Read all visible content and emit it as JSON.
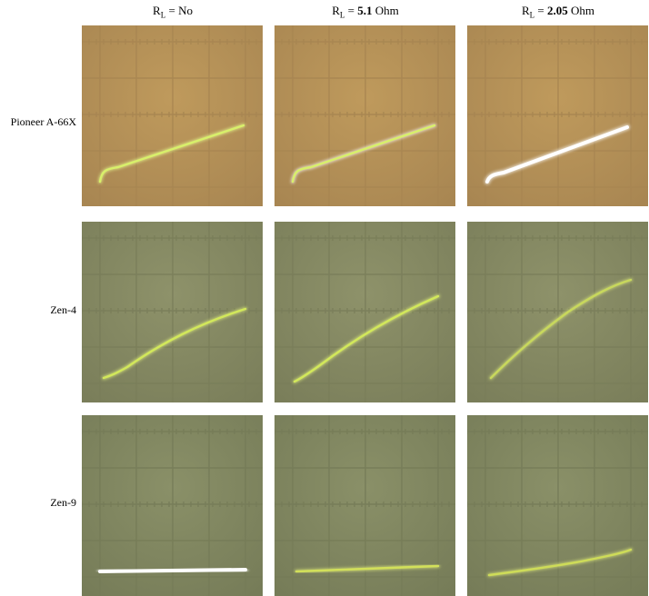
{
  "columns": [
    {
      "prefix": "R",
      "subscript": "L",
      "middle": " = ",
      "value": "No",
      "value_bold": false,
      "unit": ""
    },
    {
      "prefix": "R",
      "subscript": "L",
      "middle": " = ",
      "value": "5.1",
      "value_bold": true,
      "unit": " Ohm"
    },
    {
      "prefix": "R",
      "subscript": "L",
      "middle": " = ",
      "value": "2.05",
      "value_bold": true,
      "unit": " Ohm"
    }
  ],
  "rows": [
    {
      "label": "Pioneer A-66X",
      "screen_color": "#bf9a5c",
      "grid_color": "#a88652"
    },
    {
      "label": "Zen-4",
      "screen_color": "#8e926a",
      "grid_color": "#7a7e5a"
    },
    {
      "label": "Zen-9",
      "screen_color": "#8a9068",
      "grid_color": "#767c58"
    }
  ],
  "traces": [
    [
      {
        "color": "#d8f06a",
        "glow": "#eaff90"
      },
      {
        "color": "#d8f06a",
        "glow": "#ffffff"
      },
      {
        "color": "#ffffff",
        "glow": "#ffffff"
      }
    ],
    [
      {
        "color": "#d2e85a",
        "glow": "#e4f47c"
      },
      {
        "color": "#d2e85a",
        "glow": "#e4f47c"
      },
      {
        "color": "#c8d85c",
        "glow": "#d8e67a"
      }
    ],
    [
      {
        "color": "#ffffff",
        "glow": "#ffffff"
      },
      {
        "color": "#d2e05a",
        "glow": "#e0ec7a"
      },
      {
        "color": "#cedc58",
        "glow": "#dce878"
      }
    ]
  ]
}
